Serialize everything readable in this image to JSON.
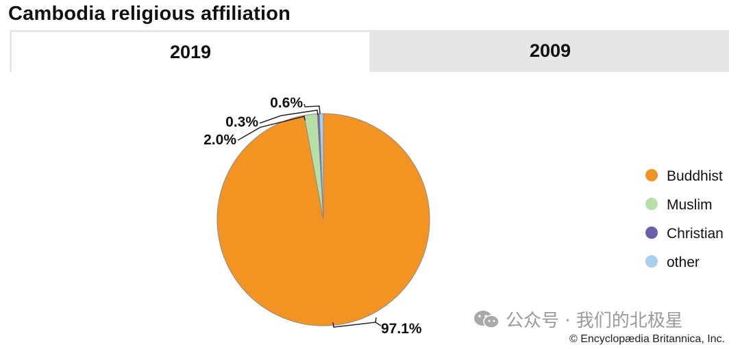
{
  "title": "Cambodia religious affiliation",
  "tabs": [
    {
      "label": "2019",
      "active": true
    },
    {
      "label": "2009",
      "active": false
    }
  ],
  "chart_data": {
    "type": "pie",
    "title": "",
    "categories": [
      "Buddhist",
      "Muslim",
      "Christian",
      "other"
    ],
    "values": [
      97.1,
      2.0,
      0.3,
      0.6
    ],
    "labels": [
      "97.1%",
      "2.0%",
      "0.3%",
      "0.6%"
    ],
    "colors": [
      "#f39422",
      "#b7dfa8",
      "#6e5fae",
      "#a8cfee"
    ],
    "legend_position": "right"
  },
  "watermark": "公众号 · 我们的北极星",
  "copyright": "© Encyclopædia Britannica, Inc."
}
